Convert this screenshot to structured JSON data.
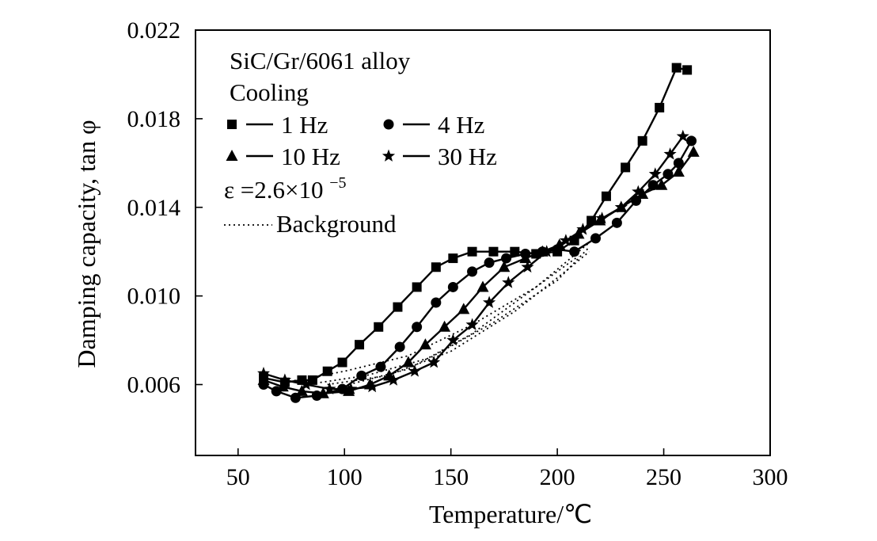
{
  "chart_data": {
    "type": "line",
    "xlabel": "Temperature/℃",
    "ylabel": "Damping capacity, tan φ",
    "xlim": [
      30,
      300
    ],
    "ylim": [
      0.0028,
      0.022
    ],
    "xticks": [
      "50",
      "100",
      "150",
      "200",
      "250",
      "300"
    ],
    "yticks": [
      "0.006",
      "0.010",
      "0.014",
      "0.018",
      "0.022"
    ],
    "xtick_values": [
      50,
      100,
      150,
      200,
      250,
      300
    ],
    "ytick_values": [
      0.006,
      0.01,
      0.014,
      0.018,
      0.022
    ],
    "legend": {
      "title_lines": [
        "SiC/Gr/6061 alloy",
        "Cooling"
      ],
      "strain_label": "ε =2.6×10",
      "strain_exponent": "−5",
      "background_label": "Background",
      "placement": "top-left"
    },
    "series": [
      {
        "name": "1 Hz",
        "marker": "square",
        "x": [
          62,
          72,
          80,
          85,
          92,
          99,
          107,
          116,
          125,
          134,
          143,
          151,
          160,
          170,
          180,
          190,
          200,
          208,
          216,
          223,
          232,
          240,
          248,
          256,
          261
        ],
        "y": [
          0.0063,
          0.0061,
          0.0062,
          0.0062,
          0.0066,
          0.007,
          0.0078,
          0.0086,
          0.0095,
          0.0104,
          0.0113,
          0.0117,
          0.012,
          0.012,
          0.012,
          0.0119,
          0.012,
          0.0125,
          0.0134,
          0.0145,
          0.0158,
          0.017,
          0.0185,
          0.0203,
          0.0202
        ]
      },
      {
        "name": "4 Hz",
        "marker": "circle",
        "x": [
          62,
          68,
          77,
          87,
          99,
          108,
          117,
          126,
          134,
          143,
          151,
          160,
          168,
          176,
          185,
          193,
          200,
          208,
          218,
          228,
          237,
          245,
          252,
          257,
          263
        ],
        "y": [
          0.006,
          0.0057,
          0.0054,
          0.0055,
          0.0058,
          0.0064,
          0.0068,
          0.0077,
          0.0086,
          0.0097,
          0.0104,
          0.0111,
          0.0115,
          0.0117,
          0.0119,
          0.012,
          0.0121,
          0.012,
          0.0126,
          0.0133,
          0.0143,
          0.015,
          0.0155,
          0.016,
          0.017
        ]
      },
      {
        "name": "10 Hz",
        "marker": "triangle",
        "x": [
          62,
          71,
          80,
          90,
          102,
          112,
          121,
          130,
          138,
          147,
          156,
          165,
          175,
          185,
          193,
          201,
          210,
          220,
          230,
          240,
          249,
          257,
          264
        ],
        "y": [
          0.0062,
          0.0059,
          0.0057,
          0.0056,
          0.0057,
          0.006,
          0.0064,
          0.007,
          0.0078,
          0.0086,
          0.0094,
          0.0104,
          0.0113,
          0.0117,
          0.012,
          0.0123,
          0.0128,
          0.0134,
          0.014,
          0.0146,
          0.015,
          0.0156,
          0.0165
        ]
      },
      {
        "name": "30 Hz",
        "marker": "star",
        "x": [
          62,
          72,
          82,
          93,
          103,
          113,
          123,
          133,
          142,
          151,
          160,
          168,
          177,
          186,
          195,
          204,
          212,
          221,
          230,
          238,
          246,
          253,
          259
        ],
        "y": [
          0.0065,
          0.0062,
          0.006,
          0.0058,
          0.0058,
          0.0059,
          0.0062,
          0.0066,
          0.007,
          0.008,
          0.0087,
          0.0097,
          0.0106,
          0.0113,
          0.012,
          0.0125,
          0.013,
          0.0135,
          0.014,
          0.0147,
          0.0155,
          0.0164,
          0.0172
        ]
      }
    ],
    "background_curves": [
      {
        "x": [
          72,
          100,
          130,
          160,
          190,
          215
        ],
        "y": [
          0.0061,
          0.0066,
          0.0073,
          0.0087,
          0.0104,
          0.0124
        ]
      },
      {
        "x": [
          82,
          110,
          140,
          170,
          200,
          215
        ],
        "y": [
          0.006,
          0.0064,
          0.0072,
          0.0088,
          0.0107,
          0.0122
        ]
      },
      {
        "x": [
          92,
          120,
          150,
          180,
          205,
          215
        ],
        "y": [
          0.006,
          0.0064,
          0.0075,
          0.0093,
          0.0112,
          0.012
        ]
      },
      {
        "x": [
          102,
          130,
          160,
          190,
          210
        ],
        "y": [
          0.006,
          0.0067,
          0.0083,
          0.0104,
          0.0118
        ]
      }
    ],
    "grid": false
  }
}
